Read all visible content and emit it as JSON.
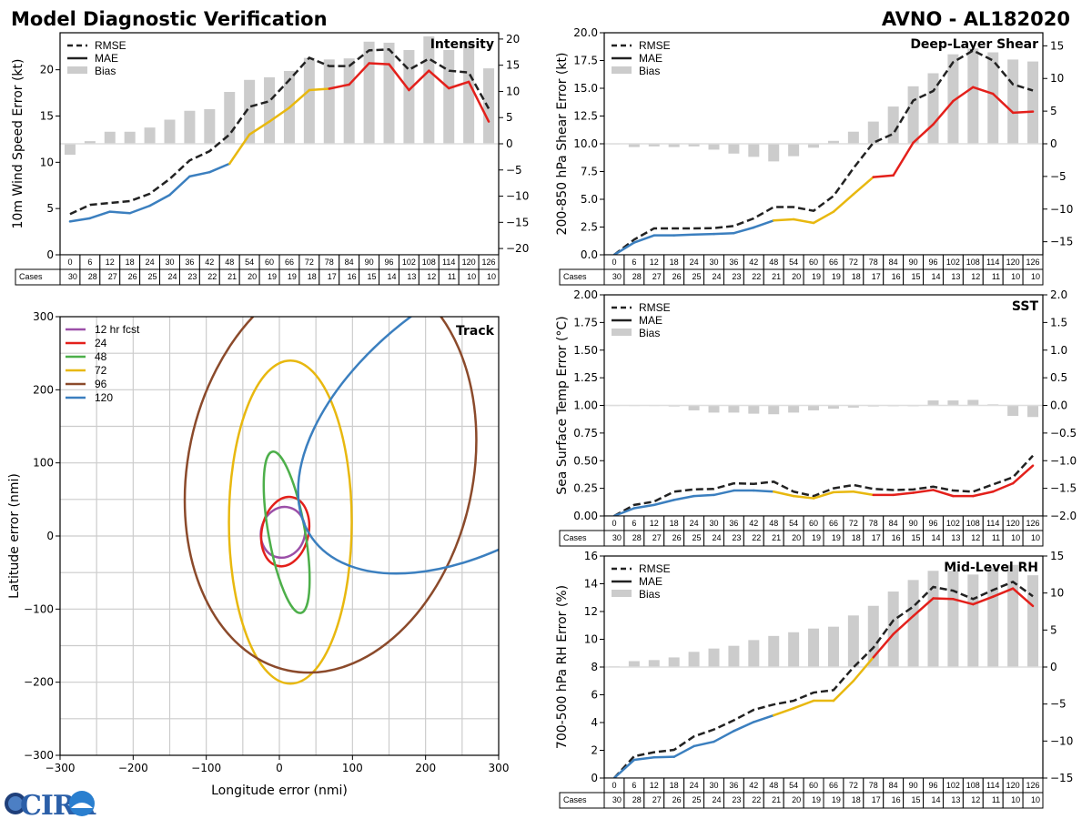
{
  "header": {
    "title": "Model Diagnostic Verification",
    "subtitle": "AVNO - AL182020"
  },
  "logo": {
    "text": "CIRA"
  },
  "table": {
    "cases_label": "Cases"
  },
  "colors": {
    "rmse": "#222222",
    "mae_early": "#3b7fbf",
    "mae_mid": "#e8b80f",
    "mae_late": "#e3201b",
    "bias": "#cccccc"
  },
  "chart_data": [
    {
      "id": "intensity",
      "type": "line",
      "title": "Intensity",
      "ylabel": "10m Wind Speed Error (kt)",
      "ylim": [
        0,
        24
      ],
      "y2lim": [
        -21.2,
        21.2
      ],
      "yticks": [
        "0",
        "5",
        "10",
        "15",
        "20"
      ],
      "y2ticks": [
        "−20",
        "−15",
        "−10",
        "−5",
        "0",
        "5",
        "10",
        "15",
        "20"
      ],
      "legend": [
        "RMSE",
        "MAE",
        "Bias"
      ],
      "mae_color_breaks": [
        48,
        78
      ],
      "x": [
        "0",
        "6",
        "12",
        "18",
        "24",
        "30",
        "36",
        "42",
        "48",
        "54",
        "60",
        "66",
        "72",
        "78",
        "84",
        "90",
        "96",
        "102",
        "108",
        "114",
        "120",
        "126"
      ],
      "cases": [
        "30",
        "28",
        "27",
        "26",
        "25",
        "24",
        "23",
        "22",
        "21",
        "20",
        "19",
        "19",
        "18",
        "17",
        "16",
        "15",
        "14",
        "13",
        "12",
        "11",
        "10",
        "10"
      ],
      "series": [
        {
          "name": "RMSE",
          "values": [
            4.4,
            5.4,
            5.6,
            5.8,
            6.6,
            8.2,
            10.2,
            11.2,
            13.0,
            16.0,
            16.6,
            18.9,
            21.3,
            20.4,
            20.4,
            22.1,
            22.2,
            20.0,
            21.2,
            19.9,
            19.7,
            15.8
          ]
        },
        {
          "name": "MAE",
          "values": [
            3.6,
            3.95,
            4.66,
            4.5,
            5.3,
            6.47,
            8.47,
            8.93,
            9.85,
            13.0,
            14.4,
            15.9,
            17.8,
            17.95,
            18.4,
            20.7,
            20.6,
            17.8,
            19.9,
            18.0,
            18.7,
            14.4
          ]
        },
        {
          "name": "Bias",
          "values": [
            -2.1,
            0.5,
            2.3,
            2.3,
            3.1,
            4.6,
            6.3,
            6.6,
            9.9,
            12.2,
            12.7,
            13.9,
            16.4,
            16.1,
            16.3,
            19.5,
            19.3,
            17.9,
            20.5,
            17.9,
            19.5,
            14.4
          ]
        }
      ]
    },
    {
      "id": "shear",
      "type": "line",
      "title": "Deep-Layer Shear",
      "ylabel": "200-850 hPa Shear Error (kt)",
      "ylim": [
        0,
        20
      ],
      "y2lim": [
        -17,
        17
      ],
      "yticks": [
        "0.0",
        "2.5",
        "5.0",
        "7.5",
        "10.0",
        "12.5",
        "15.0",
        "17.5",
        "20.0"
      ],
      "y2ticks": [
        "−15",
        "−10",
        "−5",
        "0",
        "5",
        "10",
        "15"
      ],
      "legend": [
        "RMSE",
        "MAE",
        "Bias"
      ],
      "mae_color_breaks": [
        48,
        78
      ],
      "x": [
        "0",
        "6",
        "12",
        "18",
        "24",
        "30",
        "36",
        "42",
        "48",
        "54",
        "60",
        "66",
        "72",
        "78",
        "84",
        "90",
        "96",
        "102",
        "108",
        "114",
        "120",
        "126"
      ],
      "cases": [
        "30",
        "28",
        "27",
        "26",
        "25",
        "24",
        "23",
        "22",
        "21",
        "20",
        "19",
        "19",
        "18",
        "17",
        "16",
        "15",
        "14",
        "13",
        "12",
        "11",
        "10",
        "10"
      ],
      "series": [
        {
          "name": "RMSE",
          "values": [
            0,
            1.37,
            2.38,
            2.38,
            2.38,
            2.4,
            2.6,
            3.28,
            4.3,
            4.3,
            3.96,
            5.3,
            7.8,
            10.1,
            10.9,
            13.9,
            14.75,
            17.35,
            18.4,
            17.5,
            15.35,
            14.8
          ]
        },
        {
          "name": "MAE",
          "values": [
            0,
            1.1,
            1.75,
            1.75,
            1.82,
            1.87,
            1.95,
            2.46,
            3.09,
            3.2,
            2.87,
            3.88,
            5.46,
            7.0,
            7.15,
            10.1,
            11.75,
            13.85,
            15.1,
            14.5,
            12.8,
            12.9
          ]
        },
        {
          "name": "Bias",
          "values": [
            0.05,
            -0.5,
            -0.4,
            -0.5,
            -0.4,
            -0.9,
            -1.5,
            -2.0,
            -2.7,
            -1.9,
            -0.6,
            0.45,
            1.85,
            3.4,
            5.7,
            8.8,
            10.8,
            13.7,
            14.6,
            14.0,
            12.9,
            12.6
          ]
        }
      ]
    },
    {
      "id": "sst",
      "type": "line",
      "title": "SST",
      "ylabel": "Sea Surface Temp Error (°C)",
      "ylim": [
        0,
        2
      ],
      "y2lim": [
        -2,
        2
      ],
      "yticks": [
        "0.00",
        "0.25",
        "0.50",
        "0.75",
        "1.00",
        "1.25",
        "1.50",
        "1.75",
        "2.00"
      ],
      "y2ticks": [
        "−2.0",
        "−1.5",
        "−1.0",
        "−0.5",
        "0.0",
        "0.5",
        "1.0",
        "1.5",
        "2.0"
      ],
      "legend": [
        "RMSE",
        "MAE",
        "Bias"
      ],
      "mae_color_breaks": [
        48,
        78
      ],
      "x": [
        "0",
        "6",
        "12",
        "18",
        "24",
        "30",
        "36",
        "42",
        "48",
        "54",
        "60",
        "66",
        "72",
        "78",
        "84",
        "90",
        "96",
        "102",
        "108",
        "114",
        "120",
        "126"
      ],
      "cases": [
        "30",
        "28",
        "27",
        "26",
        "25",
        "24",
        "23",
        "22",
        "21",
        "20",
        "19",
        "19",
        "18",
        "17",
        "16",
        "15",
        "14",
        "13",
        "12",
        "11",
        "10",
        "10"
      ],
      "series": [
        {
          "name": "RMSE",
          "values": [
            0,
            0.1,
            0.13,
            0.22,
            0.24,
            0.245,
            0.295,
            0.29,
            0.31,
            0.22,
            0.18,
            0.25,
            0.28,
            0.245,
            0.235,
            0.24,
            0.265,
            0.23,
            0.22,
            0.285,
            0.35,
            0.545
          ]
        },
        {
          "name": "MAE",
          "values": [
            0,
            0.07,
            0.1,
            0.145,
            0.18,
            0.19,
            0.23,
            0.23,
            0.22,
            0.18,
            0.16,
            0.215,
            0.22,
            0.19,
            0.19,
            0.21,
            0.235,
            0.18,
            0.18,
            0.22,
            0.295,
            0.455
          ]
        },
        {
          "name": "Bias",
          "values": [
            0.005,
            0.005,
            0.005,
            -0.02,
            -0.09,
            -0.13,
            -0.13,
            -0.15,
            -0.16,
            -0.13,
            -0.09,
            -0.06,
            -0.04,
            -0.02,
            -0.005,
            -0.005,
            0.09,
            0.09,
            0.1,
            0.02,
            -0.19,
            -0.21
          ]
        }
      ]
    },
    {
      "id": "rh",
      "type": "line",
      "title": "Mid-Level RH",
      "ylabel": "700-500 hPa RH Error (%)",
      "ylim": [
        0,
        16
      ],
      "y2lim": [
        -15,
        15
      ],
      "yticks": [
        "0",
        "2",
        "4",
        "6",
        "8",
        "10",
        "12",
        "14",
        "16"
      ],
      "y2ticks": [
        "−15",
        "−10",
        "−5",
        "0",
        "5",
        "10",
        "15"
      ],
      "legend": [
        "RMSE",
        "MAE",
        "Bias"
      ],
      "mae_color_breaks": [
        48,
        78
      ],
      "x": [
        "0",
        "6",
        "12",
        "18",
        "24",
        "30",
        "36",
        "42",
        "48",
        "54",
        "60",
        "66",
        "72",
        "78",
        "84",
        "90",
        "96",
        "102",
        "108",
        "114",
        "120",
        "126"
      ],
      "cases": [
        "30",
        "28",
        "27",
        "26",
        "25",
        "24",
        "23",
        "22",
        "21",
        "20",
        "19",
        "19",
        "18",
        "17",
        "16",
        "15",
        "14",
        "13",
        "12",
        "11",
        "10",
        "10"
      ],
      "series": [
        {
          "name": "RMSE",
          "values": [
            0,
            1.57,
            1.86,
            2.03,
            3.0,
            3.5,
            4.16,
            4.92,
            5.3,
            5.57,
            6.16,
            6.34,
            7.98,
            9.4,
            11.36,
            12.35,
            13.77,
            13.5,
            12.9,
            13.55,
            14.14,
            13.1
          ]
        },
        {
          "name": "MAE",
          "values": [
            0,
            1.31,
            1.49,
            1.53,
            2.3,
            2.62,
            3.39,
            4.04,
            4.52,
            5.03,
            5.57,
            5.57,
            7.0,
            8.7,
            10.37,
            11.68,
            12.95,
            12.9,
            12.52,
            13.07,
            13.66,
            12.4
          ]
        },
        {
          "name": "Bias",
          "values": [
            0.1,
            0.8,
            0.94,
            1.3,
            2.05,
            2.5,
            2.87,
            3.64,
            4.2,
            4.7,
            5.2,
            5.45,
            6.97,
            8.27,
            10.2,
            11.76,
            13.0,
            13.0,
            12.5,
            13.4,
            13.8,
            12.4
          ]
        }
      ]
    },
    {
      "id": "track",
      "type": "ellipse",
      "title": "Track",
      "xlabel": "Longitude error (nmi)",
      "ylabel": "Latitude error (nmi)",
      "xlim": [
        -300,
        300
      ],
      "ylim": [
        -300,
        300
      ],
      "xticks": [
        "−300",
        "−200",
        "−100",
        "0",
        "100",
        "200",
        "300"
      ],
      "yticks": [
        "−300",
        "−200",
        "−100",
        "0",
        "100",
        "200",
        "300"
      ],
      "grid": true,
      "legend_position": "top-left",
      "series": [
        {
          "name": "12 hr fcst",
          "color": "#9b4fa8",
          "center": [
            5,
            5
          ],
          "semi_axes": [
            30,
            35
          ],
          "tilt_deg": 15
        },
        {
          "name": "24",
          "color": "#e3201b",
          "center": [
            8,
            6
          ],
          "semi_axes": [
            32,
            48
          ],
          "tilt_deg": 12
        },
        {
          "name": "48",
          "color": "#4daf4a",
          "center": [
            10,
            5
          ],
          "semi_axes": [
            25,
            112
          ],
          "tilt_deg": -10
        },
        {
          "name": "72",
          "color": "#e8b80f",
          "center": [
            15,
            19
          ],
          "semi_axes": [
            84,
            221
          ],
          "tilt_deg": 0
        },
        {
          "name": "96",
          "color": "#8b4a2b",
          "center": [
            70,
            90
          ],
          "semi_axes": [
            195,
            280
          ],
          "tilt_deg": 12
        },
        {
          "name": "120",
          "color": "#3b7fbf",
          "center": [
            290,
            170
          ],
          "semi_axes": [
            300,
            170
          ],
          "tilt_deg": -35
        }
      ]
    }
  ]
}
